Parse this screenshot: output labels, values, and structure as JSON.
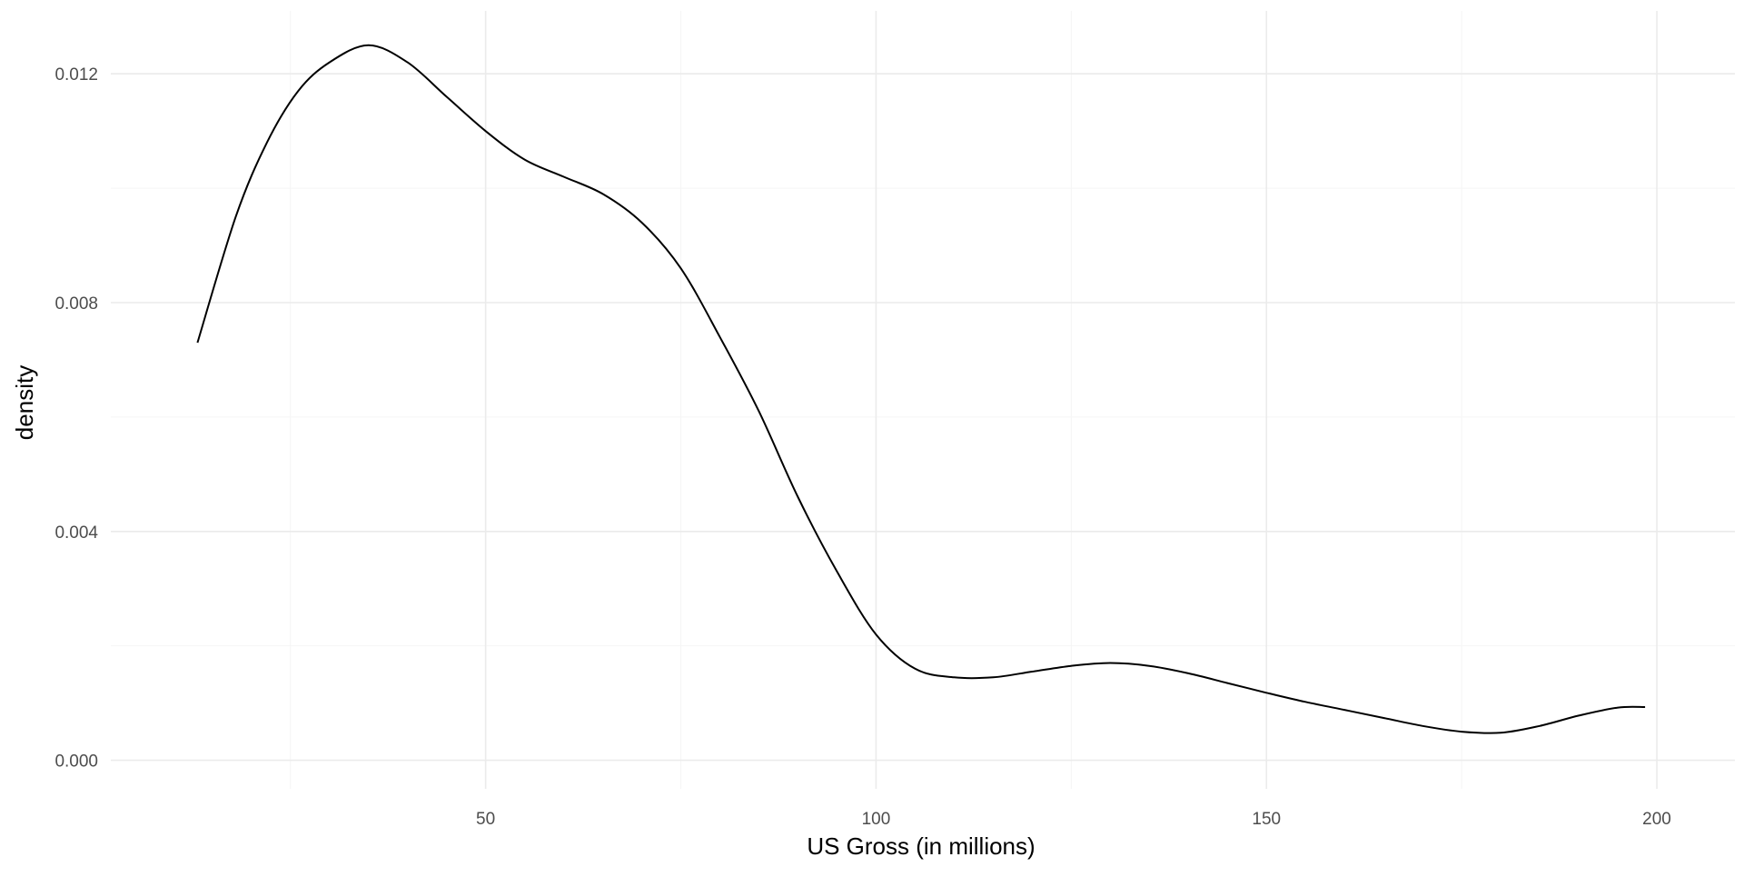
{
  "chart_data": {
    "type": "line",
    "title": "",
    "xlabel": "US Gross (in millions)",
    "ylabel": "density",
    "xlim": [
      2,
      210
    ],
    "ylim": [
      -0.0005,
      0.0131
    ],
    "x_ticks": [
      50,
      100,
      150,
      200
    ],
    "x_tick_labels": [
      "50",
      "100",
      "150",
      "200"
    ],
    "x_minor_ticks": [
      25,
      75,
      125,
      175
    ],
    "y_ticks": [
      0.0,
      0.004,
      0.008,
      0.012
    ],
    "y_tick_labels": [
      "0.000",
      "0.004",
      "0.008",
      "0.012"
    ],
    "y_minor_ticks": [
      0.002,
      0.006,
      0.01
    ],
    "grid": true,
    "colors": {
      "background": "#ffffff",
      "grid_major": "#ebebeb",
      "grid_minor": "#f5f5f5",
      "line": "#000000"
    },
    "series": [
      {
        "x": [
          13.1,
          18,
          22,
          26,
          30,
          35,
          40,
          45,
          50,
          55,
          60,
          65,
          70,
          75,
          80,
          85,
          90,
          95,
          100,
          105,
          110,
          115,
          120,
          125,
          130,
          135,
          140,
          145,
          150,
          155,
          160,
          165,
          170,
          175,
          180,
          185,
          190,
          195,
          198.5
        ],
        "values": [
          0.0073,
          0.0095,
          0.0108,
          0.0117,
          0.0122,
          0.0125,
          0.0122,
          0.0116,
          0.011,
          0.0105,
          0.0102,
          0.0099,
          0.0094,
          0.0086,
          0.0074,
          0.0061,
          0.0046,
          0.0033,
          0.0022,
          0.0016,
          0.00145,
          0.00145,
          0.00155,
          0.00165,
          0.0017,
          0.00165,
          0.00152,
          0.00135,
          0.00118,
          0.00102,
          0.00088,
          0.00074,
          0.0006,
          0.0005,
          0.00048,
          0.0006,
          0.00078,
          0.00092,
          0.00093
        ]
      }
    ]
  }
}
